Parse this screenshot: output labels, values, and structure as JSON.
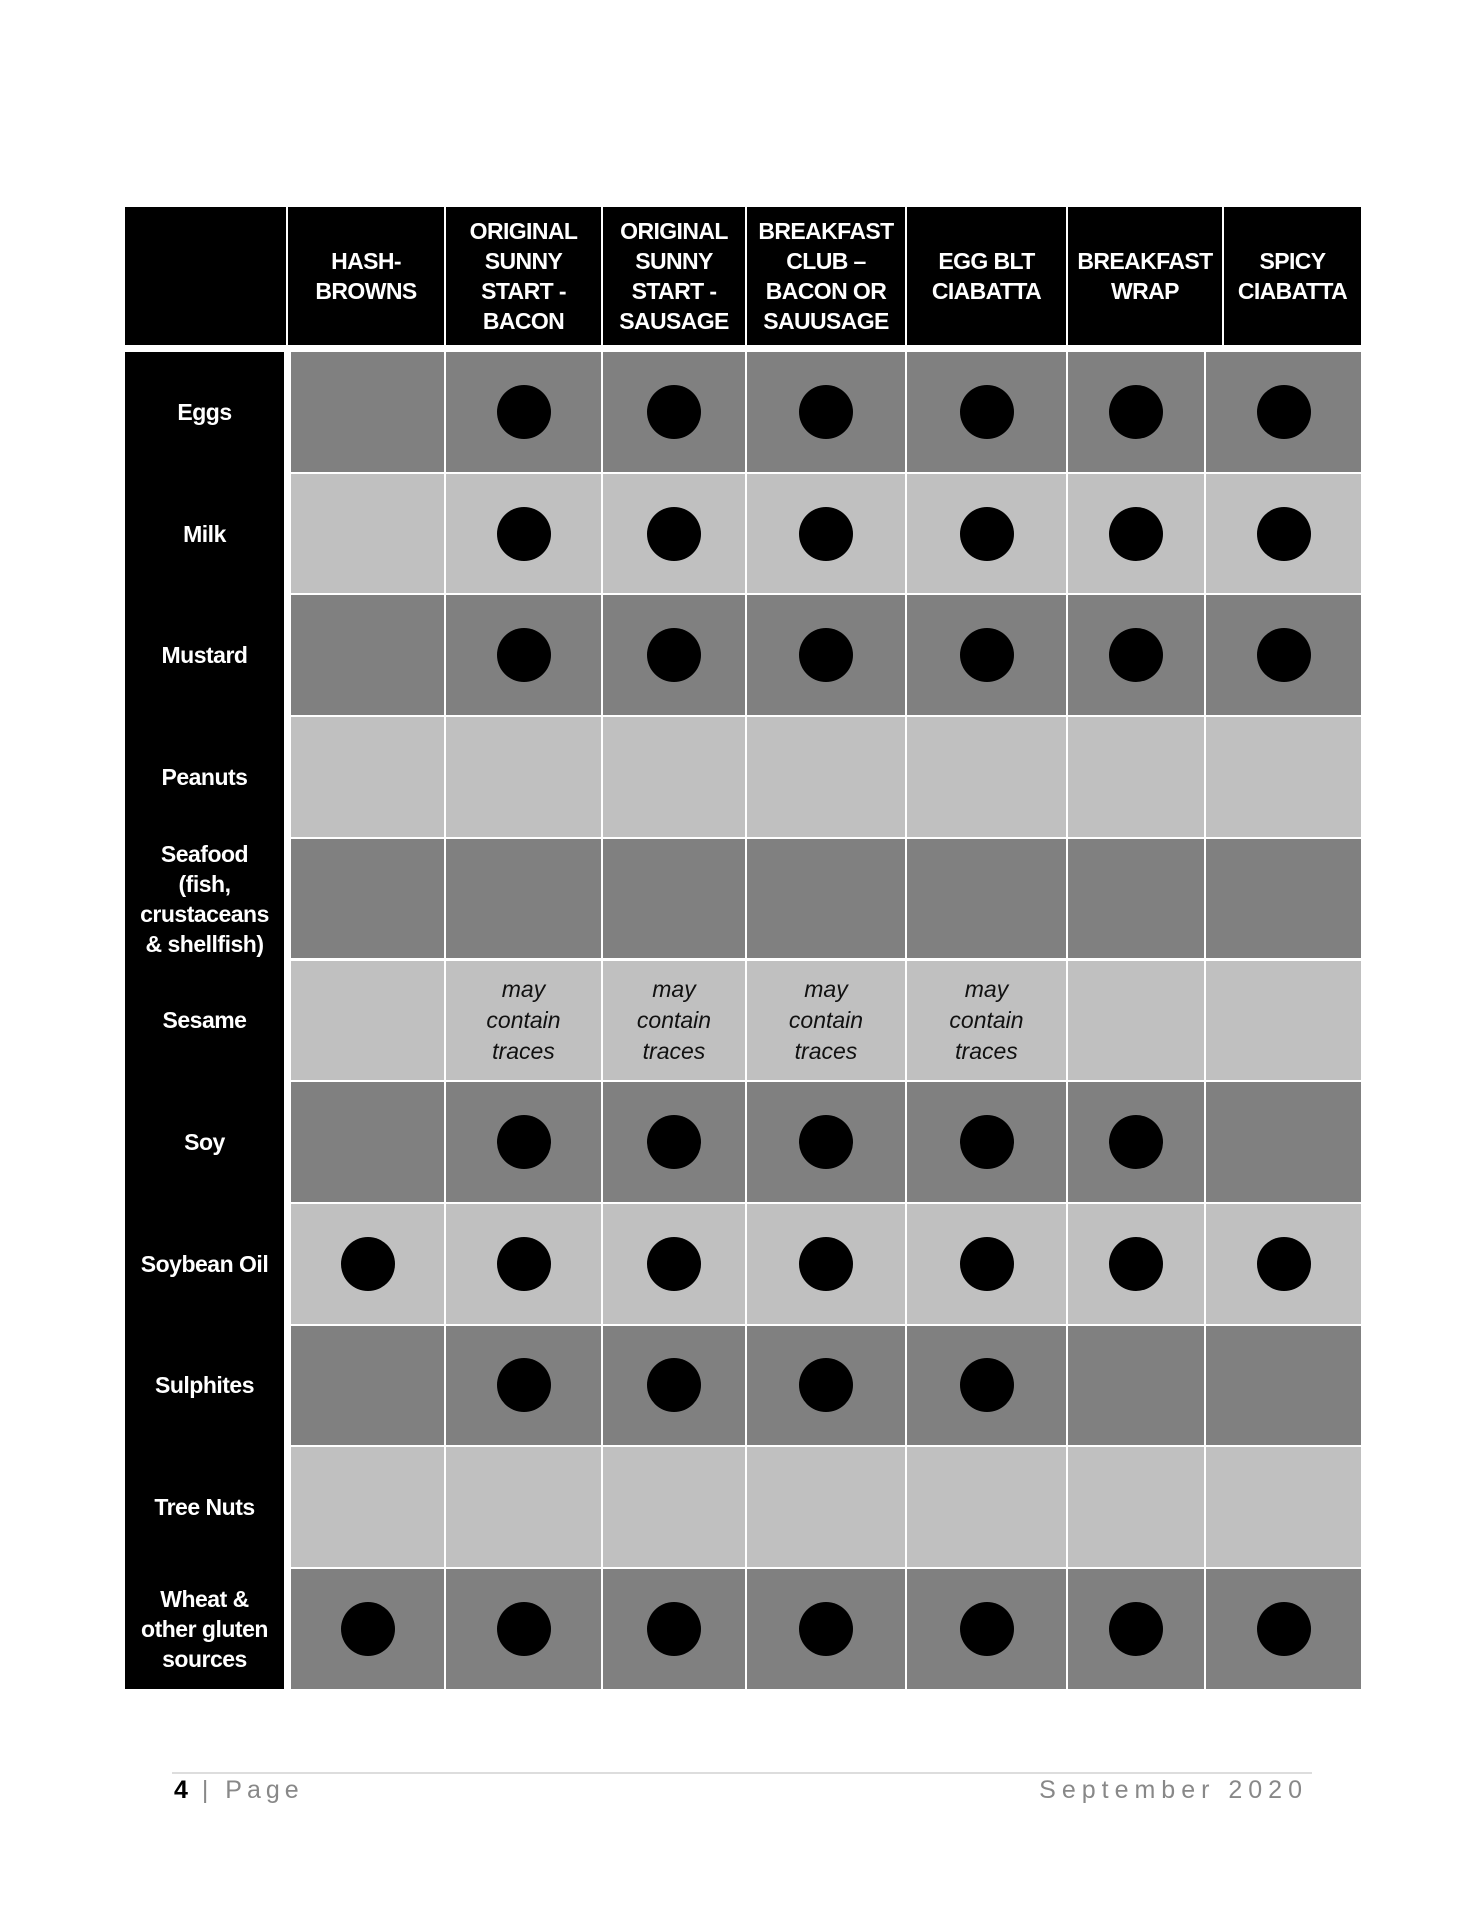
{
  "table": {
    "columns": [
      "HASH-\nBROWNS",
      "ORIGINAL\nSUNNY\nSTART -\nBACON",
      "ORIGINAL\nSUNNY\nSTART -\nSAUSAGE",
      "BREAKFAST\nCLUB –\nBACON OR\nSAUUSAGE",
      "EGG BLT\nCIABATTA",
      "BREAKFAST\nWRAP",
      "SPICY\nCIABATTA"
    ],
    "rows": [
      {
        "label": "Eggs",
        "values": [
          "",
          "dot",
          "dot",
          "dot",
          "dot",
          "dot",
          "dot"
        ]
      },
      {
        "label": "Milk",
        "values": [
          "",
          "dot",
          "dot",
          "dot",
          "dot",
          "dot",
          "dot"
        ]
      },
      {
        "label": "Mustard",
        "values": [
          "",
          "dot",
          "dot",
          "dot",
          "dot",
          "dot",
          "dot"
        ]
      },
      {
        "label": "Peanuts",
        "values": [
          "",
          "",
          "",
          "",
          "",
          "",
          ""
        ]
      },
      {
        "label": "Seafood\n(fish,\ncrustaceans\n& shellfish)",
        "values": [
          "",
          "",
          "",
          "",
          "",
          "",
          ""
        ]
      },
      {
        "label": "Sesame",
        "values": [
          "",
          "may\ncontain\ntraces",
          "may\ncontain\ntraces",
          "may\ncontain\ntraces",
          "may\ncontain\ntraces",
          "",
          ""
        ]
      },
      {
        "label": "Soy",
        "values": [
          "",
          "dot",
          "dot",
          "dot",
          "dot",
          "dot",
          ""
        ]
      },
      {
        "label": "Soybean Oil",
        "values": [
          "dot",
          "dot",
          "dot",
          "dot",
          "dot",
          "dot",
          "dot"
        ]
      },
      {
        "label": "Sulphites",
        "values": [
          "",
          "dot",
          "dot",
          "dot",
          "dot",
          "",
          ""
        ]
      },
      {
        "label": "Tree Nuts",
        "values": [
          "",
          "",
          "",
          "",
          "",
          "",
          ""
        ]
      },
      {
        "label": "Wheat &\nother gluten\nsources",
        "values": [
          "dot",
          "dot",
          "dot",
          "dot",
          "dot",
          "dot",
          "dot"
        ]
      }
    ],
    "colors": {
      "header": "#000000",
      "row_dark": "#808080",
      "row_light": "#c0c0c0",
      "dot": "#000000"
    }
  },
  "footer": {
    "page_number": "4",
    "page_label": "| Page",
    "date": "September 2020"
  }
}
